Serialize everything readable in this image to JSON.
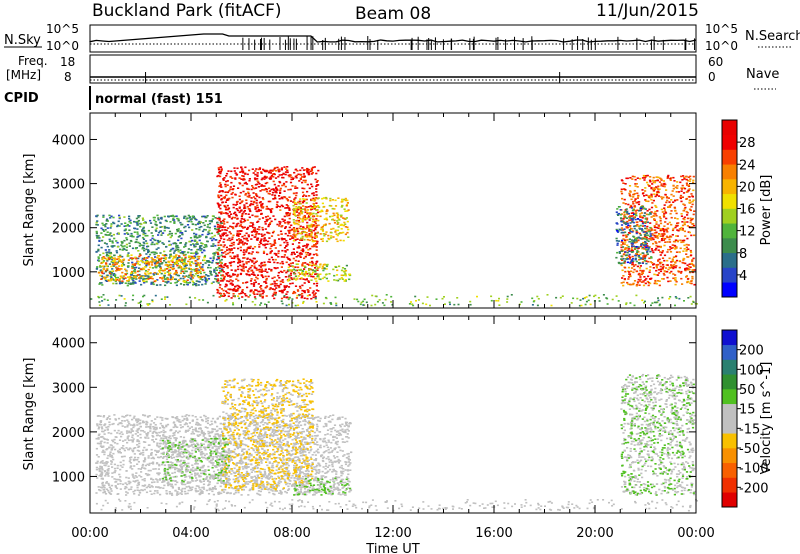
{
  "header": {
    "station": "Buckland Park (fitACF)",
    "beam": "Beam 08",
    "date": "11/Jun/2015"
  },
  "noise_panel": {
    "left_label": "N.Sky",
    "left_ticks": [
      "10^5",
      "10^0"
    ],
    "right_ticks": [
      "10^5",
      "10^0"
    ],
    "right_label": "N.Search"
  },
  "freq_panel": {
    "left_label_line1": "Freq.",
    "left_label_line2": "[MHz]",
    "left_ticks": [
      "18",
      "8"
    ],
    "right_ticks": [
      "60",
      "0"
    ],
    "right_label": "Nave"
  },
  "cpid": {
    "label": "CPID",
    "text": "normal (fast) 151"
  },
  "range_axis": {
    "label": "Slant Range [km]",
    "ticks": [
      "1000",
      "2000",
      "3000",
      "4000"
    ]
  },
  "time_axis": {
    "label": "Time UT",
    "ticks": [
      "00:00",
      "04:00",
      "08:00",
      "12:00",
      "16:00",
      "20:00",
      "00:00"
    ]
  },
  "power_scale": {
    "label": "Power [dB]",
    "ticks": [
      "4",
      "8",
      "12",
      "16",
      "20",
      "24",
      "28"
    ],
    "colors": [
      "#0000ff",
      "#2844c8",
      "#2a6e8a",
      "#3c8c4c",
      "#50b43c",
      "#a0d020",
      "#f0e000",
      "#f8b400",
      "#f88000",
      "#f84000",
      "#f00000",
      "#e80000"
    ]
  },
  "velocity_scale": {
    "label": "Velocity [m s^-1]",
    "ticks": [
      "200",
      "100",
      "50",
      "15",
      "-15",
      "-50",
      "-100",
      "-200"
    ],
    "colors": [
      "#1010d0",
      "#3060c8",
      "#2a8070",
      "#309030",
      "#50c020",
      "#c0c0c0",
      "#c0c0c0",
      "#f8c000",
      "#f89000",
      "#f86000",
      "#f03000",
      "#e00000"
    ]
  },
  "chart_data": [
    {
      "type": "heatmap",
      "title": "",
      "xlabel": "Time UT",
      "ylabel": "Slant Range [km]",
      "colorbar_label": "Power [dB]",
      "xlim": [
        "00:00",
        "24:00"
      ],
      "ylim": [
        180,
        4600
      ],
      "regions": [
        {
          "t_start": 0.2,
          "t_end": 5.2,
          "r_min": 700,
          "r_max": 2300,
          "value": 8
        },
        {
          "t_start": 0.3,
          "t_end": 4.5,
          "r_min": 800,
          "r_max": 1400,
          "value": 20
        },
        {
          "t_start": 5.0,
          "t_end": 9.0,
          "r_min": 400,
          "r_max": 3400,
          "value": 28
        },
        {
          "t_start": 8.0,
          "t_end": 10.2,
          "r_min": 1700,
          "r_max": 2700,
          "value": 18
        },
        {
          "t_start": 7.8,
          "t_end": 10.3,
          "r_min": 800,
          "r_max": 1200,
          "value": 14
        },
        {
          "t_start": 21.0,
          "t_end": 23.9,
          "r_min": 700,
          "r_max": 3200,
          "value": 24
        },
        {
          "t_start": 20.8,
          "t_end": 22.2,
          "r_min": 1200,
          "r_max": 2500,
          "value": 6
        }
      ]
    },
    {
      "type": "heatmap",
      "title": "",
      "xlabel": "Time UT",
      "ylabel": "Slant Range [km]",
      "colorbar_label": "Velocity [m s^-1]",
      "xlim": [
        "00:00",
        "24:00"
      ],
      "ylim": [
        180,
        4600
      ],
      "regions": [
        {
          "t_start": 0.2,
          "t_end": 10.3,
          "r_min": 600,
          "r_max": 2400,
          "value": 0
        },
        {
          "t_start": 5.2,
          "t_end": 8.8,
          "r_min": 700,
          "r_max": 3200,
          "value": -40
        },
        {
          "t_start": 2.8,
          "t_end": 5.5,
          "r_min": 900,
          "r_max": 1900,
          "value": 30
        },
        {
          "t_start": 8.0,
          "t_end": 10.3,
          "r_min": 600,
          "r_max": 1000,
          "value": 40
        },
        {
          "t_start": 21.0,
          "t_end": 23.9,
          "r_min": 600,
          "r_max": 3300,
          "value": 30
        }
      ]
    }
  ]
}
